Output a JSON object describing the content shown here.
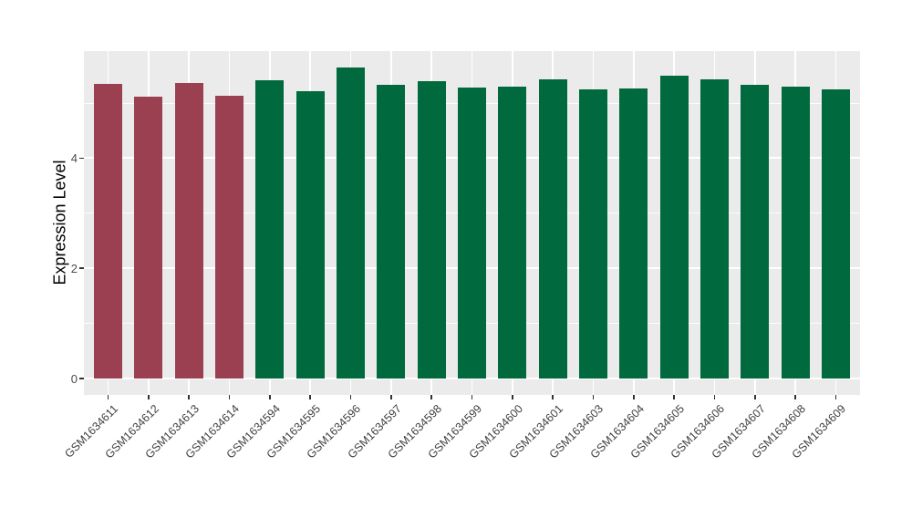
{
  "chart_data": {
    "type": "bar",
    "title": "",
    "xlabel": "",
    "ylabel": "Expression Level",
    "ylim": [
      -0.3,
      5.94
    ],
    "yticks_major": [
      0,
      2,
      4
    ],
    "yticks_minor": [
      1,
      3,
      5
    ],
    "grid": "white major/minor horizontal lines; white vertical line at each category",
    "legend_position": "none",
    "panel_background": "#EBEBEB",
    "gridline_color": "#FFFFFF",
    "axis_text_color": "#4D4D4D",
    "axis_title_color": "#000000",
    "tick_mark_color": "#333333",
    "group_colors": {
      "group1": "#9A4050",
      "group2": "#00693E"
    },
    "bars": [
      {
        "category": "GSM1634611",
        "value": 5.34,
        "group": "group1"
      },
      {
        "category": "GSM1634612",
        "value": 5.12,
        "group": "group1"
      },
      {
        "category": "GSM1634613",
        "value": 5.36,
        "group": "group1"
      },
      {
        "category": "GSM1634614",
        "value": 5.14,
        "group": "group1"
      },
      {
        "category": "GSM1634594",
        "value": 5.42,
        "group": "group2"
      },
      {
        "category": "GSM1634595",
        "value": 5.22,
        "group": "group2"
      },
      {
        "category": "GSM1634596",
        "value": 5.65,
        "group": "group2"
      },
      {
        "category": "GSM1634597",
        "value": 5.33,
        "group": "group2"
      },
      {
        "category": "GSM1634598",
        "value": 5.39,
        "group": "group2"
      },
      {
        "category": "GSM1634599",
        "value": 5.28,
        "group": "group2"
      },
      {
        "category": "GSM1634600",
        "value": 5.3,
        "group": "group2"
      },
      {
        "category": "GSM1634601",
        "value": 5.43,
        "group": "group2"
      },
      {
        "category": "GSM1634603",
        "value": 5.25,
        "group": "group2"
      },
      {
        "category": "GSM1634604",
        "value": 5.27,
        "group": "group2"
      },
      {
        "category": "GSM1634605",
        "value": 5.49,
        "group": "group2"
      },
      {
        "category": "GSM1634606",
        "value": 5.43,
        "group": "group2"
      },
      {
        "category": "GSM1634607",
        "value": 5.33,
        "group": "group2"
      },
      {
        "category": "GSM1634608",
        "value": 5.3,
        "group": "group2"
      },
      {
        "category": "GSM1634609",
        "value": 5.25,
        "group": "group2"
      }
    ]
  }
}
